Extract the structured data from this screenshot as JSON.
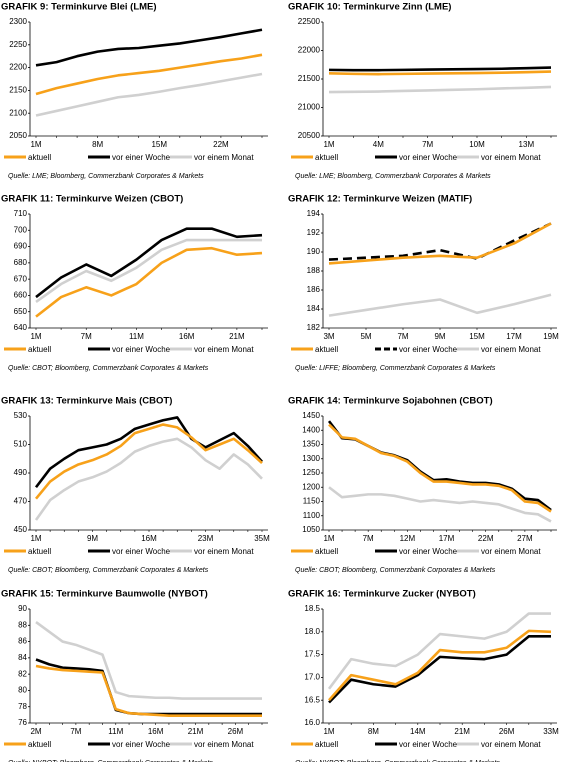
{
  "chart_data": [
    {
      "type": "line",
      "title": "GRAFIK 9: Terminkurve Blei (LME)",
      "source": "Quelle: LME; Bloomberg, Commerzbank Corporates & Markets",
      "categories": [
        "1M",
        null,
        null,
        "8M",
        null,
        null,
        "15M",
        null,
        null,
        "22M",
        null,
        null
      ],
      "ylim": [
        2050,
        2300
      ],
      "yticks": [
        2050,
        2100,
        2150,
        2200,
        2250,
        2300
      ],
      "legend": "bottom",
      "series": [
        {
          "name": "aktuell",
          "color": "#f7a11a",
          "values": [
            2142,
            2155,
            2165,
            2175,
            2183,
            2188,
            2193,
            2200,
            2207,
            2214,
            2220,
            2228
          ]
        },
        {
          "name": "vor einer Woche",
          "color": "#000000",
          "values": [
            2205,
            2212,
            2225,
            2235,
            2241,
            2243,
            2248,
            2253,
            2260,
            2267,
            2275,
            2283
          ]
        },
        {
          "name": "vor einem Monat",
          "color": "#d0d0d0",
          "values": [
            2095,
            2105,
            2115,
            2125,
            2135,
            2140,
            2147,
            2155,
            2162,
            2170,
            2178,
            2186
          ]
        }
      ]
    },
    {
      "type": "line",
      "title": "GRAFIK 10: Terminkurve Zinn (LME)",
      "source": "Quelle: LME; Bloomberg, Commerzbank Corporates & Markets",
      "categories": [
        "1M",
        null,
        "4M",
        null,
        "7M",
        null,
        "10M",
        null,
        "13M",
        null
      ],
      "ylim": [
        20500,
        22500
      ],
      "yticks": [
        20500,
        21000,
        21500,
        22000,
        22500
      ],
      "legend": "bottom",
      "series": [
        {
          "name": "aktuell",
          "color": "#f7a11a",
          "values": [
            21600,
            21590,
            21585,
            21590,
            21595,
            21600,
            21605,
            21610,
            21620,
            21630
          ]
        },
        {
          "name": "vor einer Woche",
          "color": "#000000",
          "values": [
            21660,
            21655,
            21655,
            21660,
            21665,
            21670,
            21675,
            21680,
            21690,
            21700
          ]
        },
        {
          "name": "vor einem Monat",
          "color": "#d0d0d0",
          "values": [
            21270,
            21275,
            21280,
            21290,
            21300,
            21310,
            21320,
            21335,
            21345,
            21360
          ]
        }
      ]
    },
    {
      "type": "line",
      "title": "GRAFIK 11: Terminkurve Weizen (CBOT)",
      "source": "Quelle: CBOT; Bloomberg, Commerzbank Corporates & Markets",
      "categories": [
        "1M",
        null,
        "7M",
        null,
        "11M",
        null,
        "16M",
        null,
        "21M",
        null
      ],
      "ylim": [
        640,
        710
      ],
      "yticks": [
        640,
        650,
        660,
        670,
        680,
        690,
        700,
        710
      ],
      "legend": "bottom",
      "series": [
        {
          "name": "aktuell",
          "color": "#f7a11a",
          "values": [
            647,
            659,
            665,
            660,
            667,
            680,
            688,
            689,
            685,
            686
          ]
        },
        {
          "name": "vor einer Woche",
          "color": "#000000",
          "values": [
            659,
            671,
            679,
            672,
            682,
            694,
            701,
            701,
            696,
            697
          ]
        },
        {
          "name": "vor einem Monat",
          "color": "#d0d0d0",
          "values": [
            656,
            667,
            675,
            669,
            677,
            688,
            694,
            694,
            694,
            694
          ]
        }
      ]
    },
    {
      "type": "line",
      "title": "GRAFIK 12: Terminkurve Weizen (MATIF)",
      "source": "Quelle: LIFFE; Bloomberg, Commerzbank Corporates & Markets",
      "categories": [
        "3M",
        "5M",
        "7M",
        "9M",
        "15M",
        "17M",
        "19M"
      ],
      "ylim": [
        182,
        194
      ],
      "yticks": [
        182,
        184,
        186,
        188,
        190,
        192,
        194
      ],
      "legend": "bottom",
      "series": [
        {
          "name": "aktuell",
          "color": "#f7a11a",
          "values": [
            188.8,
            189.1,
            189.4,
            189.6,
            189.4,
            190.9,
            193.0
          ]
        },
        {
          "name": "vor einer Woche",
          "color": "#000000",
          "style": "dashed",
          "values": [
            189.2,
            189.4,
            189.6,
            190.2,
            189.3,
            191.2,
            193.0
          ]
        },
        {
          "name": "vor einem Monat",
          "color": "#d0d0d0",
          "values": [
            183.3,
            183.9,
            184.5,
            185.0,
            183.6,
            184.5,
            185.5
          ]
        }
      ]
    },
    {
      "type": "line",
      "title": "GRAFIK 13: Terminkurve Mais (CBOT)",
      "source": "Quelle: CBOT; Bloomberg, Commerzbank Corporates & Markets",
      "categories": [
        "1M",
        null,
        null,
        null,
        "9M",
        null,
        null,
        null,
        "16M",
        null,
        null,
        null,
        "23M",
        null,
        null,
        null,
        "35M"
      ],
      "ylim": [
        450,
        530
      ],
      "yticks": [
        450,
        470,
        490,
        510,
        530
      ],
      "legend": "bottom",
      "series": [
        {
          "name": "aktuell",
          "color": "#f7a11a",
          "values": [
            472,
            484,
            491,
            496,
            499,
            503,
            509,
            518,
            521,
            524,
            522,
            515,
            506,
            510,
            514,
            506,
            497
          ]
        },
        {
          "name": "vor einer Woche",
          "color": "#000000",
          "values": [
            480,
            493,
            500,
            506,
            508,
            510,
            514,
            521,
            524,
            527,
            529,
            514,
            508,
            513,
            518,
            509,
            498
          ]
        },
        {
          "name": "vor einem Monat",
          "color": "#d0d0d0",
          "values": [
            457,
            471,
            478,
            484,
            487,
            491,
            497,
            505,
            509,
            512,
            514,
            508,
            499,
            493,
            503,
            496,
            486
          ]
        }
      ]
    },
    {
      "type": "line",
      "title": "GRAFIK 14: Terminkurve Sojabohnen (CBOT)",
      "source": "Quelle: CBOT; Bloomberg, Commerzbank Corporates & Markets",
      "categories": [
        "1M",
        null,
        null,
        "7M",
        null,
        null,
        "12M",
        null,
        null,
        "17M",
        null,
        null,
        "22M",
        null,
        null,
        "27M",
        null,
        null
      ],
      "ylim": [
        1050,
        1450
      ],
      "yticks": [
        1050,
        1100,
        1150,
        1200,
        1250,
        1300,
        1350,
        1400,
        1450
      ],
      "legend": "bottom",
      "series": [
        {
          "name": "aktuell",
          "color": "#f7a11a",
          "values": [
            1420,
            1375,
            1370,
            1345,
            1320,
            1310,
            1290,
            1250,
            1220,
            1220,
            1215,
            1210,
            1210,
            1205,
            1190,
            1150,
            1145,
            1115
          ]
        },
        {
          "name": "vor einer Woche",
          "color": "#000000",
          "values": [
            1432,
            1372,
            1368,
            1345,
            1322,
            1312,
            1295,
            1255,
            1225,
            1228,
            1220,
            1215,
            1215,
            1210,
            1195,
            1160,
            1155,
            1120
          ]
        },
        {
          "name": "vor einem Monat",
          "color": "#d0d0d0",
          "values": [
            1200,
            1165,
            1170,
            1175,
            1175,
            1170,
            1160,
            1150,
            1155,
            1150,
            1145,
            1150,
            1145,
            1140,
            1125,
            1110,
            1105,
            1080
          ]
        }
      ]
    },
    {
      "type": "line",
      "title": "GRAFIK 15: Terminkurve Baumwolle (NYBOT)",
      "source": "Quelle: NYBOT; Bloomberg, Commerzbank Corporates & Markets",
      "categories": [
        "2M",
        null,
        null,
        "7M",
        null,
        null,
        "11M",
        null,
        null,
        "16M",
        null,
        null,
        "21M",
        null,
        null,
        "26M",
        null,
        null
      ],
      "ylim": [
        76,
        90
      ],
      "yticks": [
        76,
        78,
        80,
        82,
        84,
        86,
        88,
        90
      ],
      "legend": "bottom",
      "series": [
        {
          "name": "aktuell",
          "color": "#f7a11a",
          "values": [
            83.0,
            82.7,
            82.5,
            82.4,
            82.3,
            82.2,
            77.7,
            77.2,
            77.1,
            77.0,
            76.9,
            76.9,
            76.9,
            76.9,
            76.9,
            76.9,
            76.9,
            76.9
          ]
        },
        {
          "name": "vor einer Woche",
          "color": "#000000",
          "values": [
            83.8,
            83.2,
            82.8,
            82.7,
            82.6,
            82.4,
            77.6,
            77.2,
            77.1,
            77.1,
            77.1,
            77.1,
            77.1,
            77.1,
            77.1,
            77.1,
            77.1,
            77.1
          ]
        },
        {
          "name": "vor einem Monat",
          "color": "#d0d0d0",
          "values": [
            88.4,
            87.2,
            86.0,
            85.6,
            85.0,
            84.4,
            79.8,
            79.3,
            79.2,
            79.1,
            79.1,
            79.0,
            79.0,
            79.0,
            79.0,
            79.0,
            79.0,
            79.0
          ]
        }
      ]
    },
    {
      "type": "line",
      "title": "GRAFIK 16: Terminkurve Zucker (NYBOT)",
      "source": "Quelle: NYBOT; Bloomberg, Commerzbank Corporates & Markets",
      "categories": [
        "1M",
        null,
        "8M",
        null,
        "14M",
        null,
        "21M",
        null,
        "26M",
        null,
        "33M"
      ],
      "ylim": [
        16,
        18.5
      ],
      "yticks": [
        {
          "value": 16,
          "label": "16.0"
        },
        {
          "value": 16.5,
          "label": "16.5"
        },
        {
          "value": 17,
          "label": "17.0"
        },
        {
          "value": 17.5,
          "label": "17.5"
        },
        {
          "value": 18,
          "label": "18.0"
        },
        {
          "value": 18.5,
          "label": "18.5"
        }
      ],
      "legend": "bottom",
      "series": [
        {
          "name": "aktuell",
          "color": "#f7a11a",
          "values": [
            16.5,
            17.05,
            16.95,
            16.85,
            17.1,
            17.6,
            17.55,
            17.55,
            17.65,
            18.02,
            18.0
          ]
        },
        {
          "name": "vor einer Woche",
          "color": "#000000",
          "values": [
            16.45,
            16.95,
            16.85,
            16.8,
            17.05,
            17.45,
            17.42,
            17.4,
            17.5,
            17.9,
            17.9
          ]
        },
        {
          "name": "vor einem Monat",
          "color": "#d0d0d0",
          "values": [
            16.75,
            17.4,
            17.3,
            17.25,
            17.5,
            17.95,
            17.9,
            17.85,
            18.0,
            18.4,
            18.4
          ]
        }
      ]
    }
  ]
}
